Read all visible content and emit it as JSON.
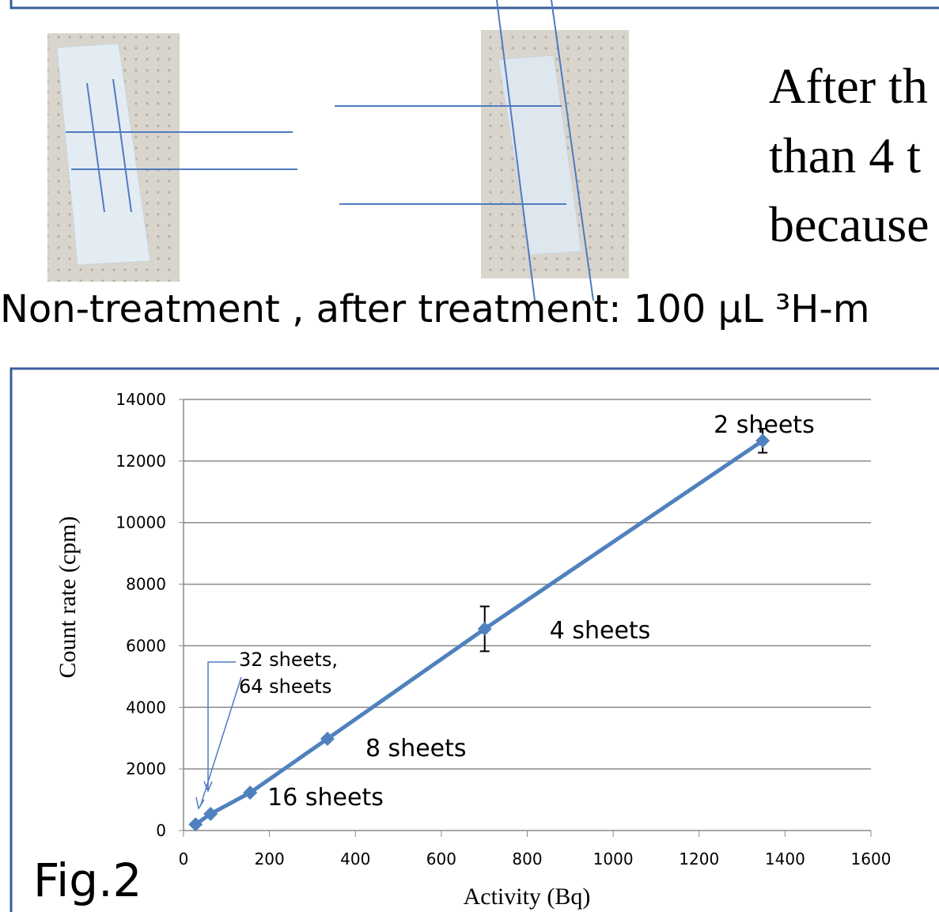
{
  "slide": {
    "side_text": [
      "After th",
      "than 4 t",
      "because"
    ],
    "caption": "Non-treatment , after treatment: 100 µL ³H-m",
    "figure_label": "Fig.2"
  },
  "chart_data": {
    "type": "line",
    "x_label": "Activity (Bq)",
    "y_label": "Count rate (cpm)",
    "xlim": [
      0,
      1600
    ],
    "xticks": [
      0,
      200,
      400,
      600,
      800,
      1000,
      1200,
      1400,
      1600
    ],
    "ylim": [
      0,
      14000
    ],
    "yticks": [
      0,
      2000,
      4000,
      6000,
      8000,
      10000,
      12000,
      14000
    ],
    "grid": true,
    "series": [
      {
        "color": "#4f81bd",
        "x": [
          28,
          63,
          155,
          335,
          701,
          1348
        ],
        "values": [
          200,
          540,
          1230,
          2980,
          6550,
          12660
        ],
        "errors": [
          null,
          null,
          null,
          null,
          730,
          390
        ],
        "point_labels": [
          null,
          null,
          "16 sheets",
          "8 sheets",
          "4 sheets",
          "2 sheets"
        ]
      }
    ],
    "annotation": [
      "32 sheets,",
      "64 sheets"
    ]
  }
}
